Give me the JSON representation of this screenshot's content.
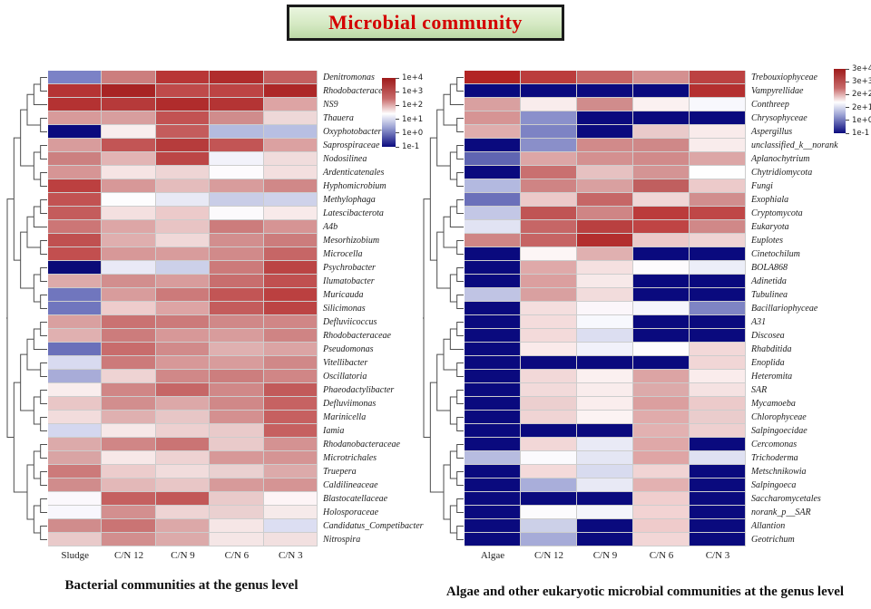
{
  "title": {
    "text": "Microbial community"
  },
  "colors": {
    "title_text": "#d40000",
    "title_box_fill": "#d5e9c3",
    "scale_high": "#9e1a1a",
    "scale_mid": "#ffffff",
    "scale_low": "#0a0a7e"
  },
  "chart_data": [
    {
      "type": "heatmap",
      "name": "bacterial-communities",
      "caption": "Bacterial communities at the genus level",
      "columns": [
        "Sludge",
        "C/N 12",
        "C/N 9",
        "C/N 6",
        "C/N 3"
      ],
      "legend_ticks": [
        "1e+4",
        "1e+3",
        "1e+2",
        "1e+1",
        "1e+0",
        "1e-1"
      ],
      "legend_position": "top-right",
      "grid": true,
      "rows": [
        {
          "label": "Denitromonas",
          "cells": [
            "#7b82c6",
            "#cc7e7e",
            "#b83636",
            "#b02c2c",
            "#c46060"
          ]
        },
        {
          "label": "Rhodobacteraceae",
          "cells": [
            "#b53434",
            "#a82424",
            "#bf4a4a",
            "#bd4444",
            "#ad2828"
          ]
        },
        {
          "label": "NS9",
          "cells": [
            "#b43232",
            "#b63a3a",
            "#b02c2c",
            "#b43434",
            "#dda4a4"
          ]
        },
        {
          "label": "Thauera",
          "cells": [
            "#d89a9a",
            "#d89e9e",
            "#c25252",
            "#d08c8c",
            "#eed8d8"
          ]
        },
        {
          "label": "Oxyphotobacteria",
          "cells": [
            "#0a0a7e",
            "#f8eded",
            "#c45c5c",
            "#b4bbdf",
            "#b8bfe2"
          ]
        },
        {
          "label": "Saprospiraceae",
          "cells": [
            "#d89c9c",
            "#c25555",
            "#b63c3c",
            "#c25555",
            "#dba1a1"
          ]
        },
        {
          "label": "Nodosilinea",
          "cells": [
            "#cc8080",
            "#e2b4b4",
            "#bc4646",
            "#f2f2fa",
            "#f0dcdc"
          ]
        },
        {
          "label": "Ardenticatenales",
          "cells": [
            "#d69595",
            "#f6e4e4",
            "#eed5d5",
            "#fdfbfd",
            "#f3dfdf"
          ]
        },
        {
          "label": "Hyphomicrobium",
          "cells": [
            "#bc4040",
            "#d79898",
            "#e4bcbc",
            "#d89c9c",
            "#d08888"
          ]
        },
        {
          "label": "Methylophaga",
          "cells": [
            "#c25252",
            "#fdfdfe",
            "#e8e9f5",
            "#c9cde7",
            "#ced2ea"
          ]
        },
        {
          "label": "Latescibacterota",
          "cells": [
            "#c45c5c",
            "#f4e0e0",
            "#eccaca",
            "#fcfafc",
            "#f8eaea"
          ]
        },
        {
          "label": "A4b",
          "cells": [
            "#cc7676",
            "#dda6a6",
            "#e8c4c4",
            "#cc7c7c",
            "#d69494"
          ]
        },
        {
          "label": "Mesorhizobium",
          "cells": [
            "#c05050",
            "#dfaeae",
            "#f0d8d8",
            "#d28e8e",
            "#cc7c7c"
          ]
        },
        {
          "label": "Microcella",
          "cells": [
            "#c24f4f",
            "#d79898",
            "#d89c9c",
            "#d18a8a",
            "#c66666"
          ]
        },
        {
          "label": "Psychrobacter",
          "cells": [
            "#0a0a78",
            "#e9e9f6",
            "#ccd0e9",
            "#cc7a7a",
            "#bb4444"
          ]
        },
        {
          "label": "Ilumatobacter",
          "cells": [
            "#dcaaaa",
            "#d28e8e",
            "#d89c9c",
            "#c86e6e",
            "#c05050"
          ]
        },
        {
          "label": "Muricauda",
          "cells": [
            "#7076be",
            "#d89c9c",
            "#cc7a7a",
            "#c25555",
            "#bb4040"
          ]
        },
        {
          "label": "Silicimonas",
          "cells": [
            "#7076be",
            "#eecccc",
            "#dda4a4",
            "#c45c5c",
            "#bc4444"
          ]
        },
        {
          "label": "Defluviicoccus",
          "cells": [
            "#d9a0a0",
            "#ca7272",
            "#cc7a7a",
            "#d08888",
            "#d08686"
          ]
        },
        {
          "label": "Rhodobacteraceae",
          "cells": [
            "#e0b0b0",
            "#cc7c7c",
            "#d79898",
            "#d89c9c",
            "#cf8484"
          ]
        },
        {
          "label": "Pseudomonas",
          "cells": [
            "#6a70ba",
            "#c86c6c",
            "#d18a8a",
            "#dfb0b0",
            "#dba4a4"
          ]
        },
        {
          "label": "Vitellibacter",
          "cells": [
            "#d8daf0",
            "#cc7a7a",
            "#d79898",
            "#d89c9c",
            "#d08888"
          ]
        },
        {
          "label": "Oscillatoria",
          "cells": [
            "#a8acd8",
            "#eed3d3",
            "#d08888",
            "#cc7e7e",
            "#d08686"
          ]
        },
        {
          "label": "Phaeodactylibacter",
          "cells": [
            "#f9eded",
            "#d08686",
            "#c66666",
            "#d08888",
            "#c25a5a"
          ]
        },
        {
          "label": "Defluviimonas",
          "cells": [
            "#e9c6c6",
            "#d28e8e",
            "#dca8a8",
            "#d08888",
            "#c66262"
          ]
        },
        {
          "label": "Marinicella",
          "cells": [
            "#f2dcdc",
            "#dfb0b0",
            "#e7c6c6",
            "#d49090",
            "#c66060"
          ]
        },
        {
          "label": "Iamia",
          "cells": [
            "#d4d7ef",
            "#f6e8e8",
            "#edd0d0",
            "#e9caca",
            "#c66060"
          ]
        },
        {
          "label": "Rhodanobacteraceae",
          "cells": [
            "#dcaaaa",
            "#d08686",
            "#ca7474",
            "#e9caca",
            "#d49292"
          ]
        },
        {
          "label": "Microtrichales",
          "cells": [
            "#d9a4a4",
            "#f7e8e8",
            "#eed2d2",
            "#d79898",
            "#d59494"
          ]
        },
        {
          "label": "Truepera",
          "cells": [
            "#cc7a7a",
            "#eccccc",
            "#f1dcdc",
            "#ead0d0",
            "#dcaaaa"
          ]
        },
        {
          "label": "Caldilineaceae",
          "cells": [
            "#d08c8c",
            "#e3b8b8",
            "#e8c6c6",
            "#d79a9a",
            "#d59494"
          ]
        },
        {
          "label": "Blastocatellaceae",
          "cells": [
            "#fbf8fc",
            "#c56060",
            "#c25858",
            "#e9caca",
            "#fdf4f6"
          ]
        },
        {
          "label": "Holosporaceae",
          "cells": [
            "#f8f7fd",
            "#d38f8f",
            "#eed4d4",
            "#ead0d0",
            "#f6eaea"
          ]
        },
        {
          "label": "Candidatus_Competibacter",
          "cells": [
            "#d08c8c",
            "#ca7474",
            "#dca8a8",
            "#f6e6e6",
            "#dcdef2"
          ]
        },
        {
          "label": "Nitrospira",
          "cells": [
            "#e9caca",
            "#d28e8e",
            "#dcaaaa",
            "#f5e6e6",
            "#f2e0e0"
          ]
        }
      ]
    },
    {
      "type": "heatmap",
      "name": "eukaryotic-communities",
      "caption": "Algae and other eukaryotic microbial communities at the genus level",
      "columns": [
        "Algae",
        "C/N 12",
        "C/N 9",
        "C/N 6",
        "C/N 3"
      ],
      "legend_ticks": [
        "3e+4",
        "3e+3",
        "2e+2",
        "2e+1",
        "1e+0",
        "1e-1"
      ],
      "legend_position": "top-right",
      "grid": true,
      "rows": [
        {
          "label": "Trebouxiophyceae",
          "cells": [
            "#b22424",
            "#bb3c3c",
            "#c66464",
            "#d49090",
            "#bc4242"
          ]
        },
        {
          "label": "Vampyrellidae",
          "cells": [
            "#0a0a7e",
            "#0a0a7e",
            "#0a0a7e",
            "#0a0a7e",
            "#b43030"
          ]
        },
        {
          "label": "Conthreep",
          "cells": [
            "#d9a0a0",
            "#f9ecec",
            "#d08c8c",
            "#fbf1f1",
            "#f8f8fd"
          ]
        },
        {
          "label": "Chrysophyceae",
          "cells": [
            "#d69494",
            "#8a90cb",
            "#0a0a7e",
            "#0a0a7e",
            "#0a0a7e"
          ]
        },
        {
          "label": "Aspergillus",
          "cells": [
            "#dfadad",
            "#7d83c4",
            "#0a0a7e",
            "#e9caca",
            "#f9ebeb"
          ]
        },
        {
          "label": "unclassified_k__norank",
          "cells": [
            "#0a0a7e",
            "#8a8fc9",
            "#d18a8a",
            "#cf8888",
            "#f9ecec"
          ]
        },
        {
          "label": "Aplanochytrium",
          "cells": [
            "#5f65b2",
            "#dca6a6",
            "#d49090",
            "#d18a8a",
            "#dca6a6"
          ]
        },
        {
          "label": "Chytridiomycota",
          "cells": [
            "#0a0a7e",
            "#c97070",
            "#e6c1c1",
            "#d49494",
            "#fefefe"
          ]
        },
        {
          "label": "Fungi",
          "cells": [
            "#b3b9e0",
            "#cf8484",
            "#d9a0a0",
            "#c05f5f",
            "#eccaca"
          ]
        },
        {
          "label": "Exophiala",
          "cells": [
            "#6b70ba",
            "#ecc9c9",
            "#c66666",
            "#f0d6d6",
            "#d18e8e"
          ]
        },
        {
          "label": "Cryptomycota",
          "cells": [
            "#c3c7e6",
            "#c05454",
            "#cf8585",
            "#bb3b3b",
            "#bf4747"
          ]
        },
        {
          "label": "Eukaryota",
          "cells": [
            "#e1e3f3",
            "#c66666",
            "#b94040",
            "#bf4444",
            "#d08888"
          ]
        },
        {
          "label": "Euplotes",
          "cells": [
            "#cf8585",
            "#c66464",
            "#b32e2e",
            "#ecc9c9",
            "#efd4d4"
          ]
        },
        {
          "label": "Cinetochilum",
          "cells": [
            "#0a0a7e",
            "#fdf6f6",
            "#e0b0b0",
            "#0a0a7e",
            "#0a0a7e"
          ]
        },
        {
          "label": "BOLA868",
          "cells": [
            "#0a0a7e",
            "#dfa9a9",
            "#f5e0e0",
            "#fdfbfd",
            "#eceef8"
          ]
        },
        {
          "label": "Adinetida",
          "cells": [
            "#0a0a7e",
            "#db9f9f",
            "#f7e9e9",
            "#0a0a7e",
            "#0a0a7e"
          ]
        },
        {
          "label": "Tubulinea",
          "cells": [
            "#c0c4e4",
            "#d9a0a0",
            "#f2dcdc",
            "#0a0a7e",
            "#0a0a7e"
          ]
        },
        {
          "label": "Bacillariophyceae",
          "cells": [
            "#0a0a7e",
            "#f4dede",
            "#fbf6fa",
            "#f6f6fc",
            "#7e84c4"
          ]
        },
        {
          "label": "A31",
          "cells": [
            "#0a0a7e",
            "#f4dcdc",
            "#f7f8fd",
            "#0a0a7e",
            "#0a0a7e"
          ]
        },
        {
          "label": "Discosea",
          "cells": [
            "#0a0a7e",
            "#f3dada",
            "#dcdef1",
            "#0a0a7e",
            "#0a0a7e"
          ]
        },
        {
          "label": "Rhabditida",
          "cells": [
            "#0a0a7e",
            "#faeaea",
            "#f1f1fa",
            "#fefcfe",
            "#f2d8d8"
          ]
        },
        {
          "label": "Enoplida",
          "cells": [
            "#0a0a7e",
            "#0a0a7e",
            "#0a0a7e",
            "#0a0a7e",
            "#f1d6d6"
          ]
        },
        {
          "label": "Heteromita",
          "cells": [
            "#0a0a7e",
            "#f2d8d8",
            "#fbf0f0",
            "#dca4a4",
            "#faecec"
          ]
        },
        {
          "label": "SAR",
          "cells": [
            "#0a0a7e",
            "#f2dada",
            "#f9ecec",
            "#dcaaaa",
            "#f5e2e2"
          ]
        },
        {
          "label": "Mycamoeba",
          "cells": [
            "#0a0a7e",
            "#eccfcf",
            "#faeded",
            "#db9f9f",
            "#eccaca"
          ]
        },
        {
          "label": "Chlorophyceae",
          "cells": [
            "#0a0a7e",
            "#f0d4d4",
            "#fcf3f3",
            "#e0abab",
            "#eacccc"
          ]
        },
        {
          "label": "Salpingoecidae",
          "cells": [
            "#0a0a7e",
            "#0a0a7e",
            "#0a0a7e",
            "#e2b1b1",
            "#eed0d0"
          ]
        },
        {
          "label": "Cercomonas",
          "cells": [
            "#0a0a7e",
            "#f2d7d7",
            "#e9eaf6",
            "#dfa8a8",
            "#0a0a7e"
          ]
        },
        {
          "label": "Trichoderma",
          "cells": [
            "#b7bce0",
            "#fbfafd",
            "#e4e6f4",
            "#dfa5a5",
            "#dfe1f2"
          ]
        },
        {
          "label": "Metschnikowia",
          "cells": [
            "#0a0a7e",
            "#f4dada",
            "#d8dbef",
            "#f1d4d4",
            "#0a0a7e"
          ]
        },
        {
          "label": "Salpingoeca",
          "cells": [
            "#0a0a7e",
            "#a9aeda",
            "#e8e9f5",
            "#e3b1b1",
            "#0a0a7e"
          ]
        },
        {
          "label": "Saccharomycetales",
          "cells": [
            "#0a0a7e",
            "#0a0a7e",
            "#0a0a7e",
            "#f0cece",
            "#0a0a7e"
          ]
        },
        {
          "label": "norank_p__SAR",
          "cells": [
            "#0a0a7e",
            "#fcfbfd",
            "#f4f5fb",
            "#f2d3d3",
            "#0a0a7e"
          ]
        },
        {
          "label": "Allantion",
          "cells": [
            "#0a0a7e",
            "#ccd0e8",
            "#0a0a7e",
            "#efcbcb",
            "#0a0a7e"
          ]
        },
        {
          "label": "Geotrichum",
          "cells": [
            "#0a0a7e",
            "#a6abd8",
            "#0a0a7e",
            "#f2d6d6",
            "#0a0a7e"
          ]
        }
      ]
    }
  ]
}
